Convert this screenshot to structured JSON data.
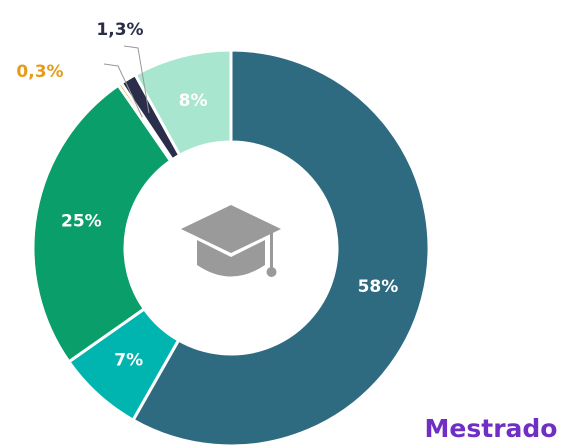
{
  "chart_data": {
    "type": "donut",
    "title": "Mestrado",
    "values": [
      58,
      7,
      25,
      0.3,
      1.3,
      8
    ],
    "value_labels": [
      "58%",
      "7%",
      "25%",
      "0,3%",
      "1,3%",
      "8%"
    ],
    "colors": [
      "#2f6b80",
      "#00b5b0",
      "#0a9e6a",
      "#e59c1c",
      "#2a2e4a",
      "#a8e6cf"
    ]
  }
}
